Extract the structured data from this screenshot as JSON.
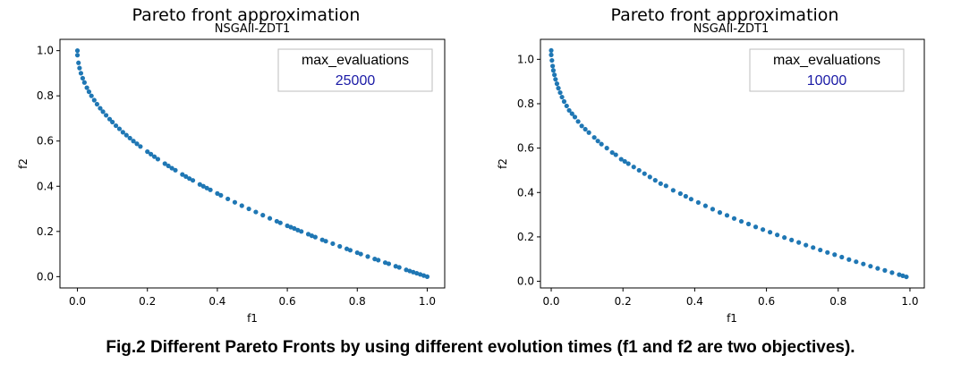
{
  "caption": "Fig.2 Different Pareto Fronts by using different evolution times (f1 and f2 are two objectives).",
  "colors": {
    "points": "#1f77b4",
    "box_value": "#1a1aa6"
  },
  "chart_data": [
    {
      "type": "scatter",
      "title": "Pareto front approximation",
      "subtitle": "NSGAII-ZDT1",
      "xlabel": "f1",
      "ylabel": "f2",
      "xlim": [
        -0.05,
        1.05
      ],
      "ylim": [
        -0.05,
        1.05
      ],
      "xticks": [
        "0.0",
        "0.2",
        "0.4",
        "0.6",
        "0.8",
        "1.0"
      ],
      "yticks": [
        "0.0",
        "0.2",
        "0.4",
        "0.6",
        "0.8",
        "1.0"
      ],
      "grid": false,
      "legend_box": {
        "title": "max_evaluations",
        "value": "25000",
        "position": "top-right"
      },
      "x": [
        0.0,
        0.0,
        0.003,
        0.006,
        0.01,
        0.015,
        0.02,
        0.027,
        0.033,
        0.04,
        0.048,
        0.056,
        0.065,
        0.073,
        0.082,
        0.092,
        0.1,
        0.11,
        0.12,
        0.13,
        0.14,
        0.15,
        0.16,
        0.17,
        0.18,
        0.2,
        0.21,
        0.22,
        0.23,
        0.25,
        0.26,
        0.27,
        0.28,
        0.3,
        0.31,
        0.32,
        0.33,
        0.35,
        0.36,
        0.37,
        0.38,
        0.4,
        0.41,
        0.43,
        0.45,
        0.47,
        0.49,
        0.51,
        0.53,
        0.55,
        0.57,
        0.58,
        0.6,
        0.61,
        0.62,
        0.63,
        0.64,
        0.66,
        0.67,
        0.68,
        0.7,
        0.71,
        0.73,
        0.75,
        0.77,
        0.78,
        0.8,
        0.81,
        0.83,
        0.85,
        0.86,
        0.88,
        0.89,
        0.91,
        0.92,
        0.94,
        0.95,
        0.96,
        0.97,
        0.98,
        0.99,
        1.0
      ],
      "y": [
        1.0,
        0.98,
        0.946,
        0.923,
        0.9,
        0.878,
        0.859,
        0.836,
        0.818,
        0.8,
        0.781,
        0.763,
        0.745,
        0.73,
        0.714,
        0.697,
        0.684,
        0.668,
        0.654,
        0.639,
        0.626,
        0.613,
        0.6,
        0.588,
        0.576,
        0.553,
        0.542,
        0.531,
        0.52,
        0.5,
        0.49,
        0.48,
        0.471,
        0.452,
        0.443,
        0.434,
        0.426,
        0.408,
        0.4,
        0.392,
        0.384,
        0.368,
        0.36,
        0.344,
        0.329,
        0.314,
        0.3,
        0.286,
        0.272,
        0.258,
        0.245,
        0.238,
        0.225,
        0.219,
        0.213,
        0.206,
        0.2,
        0.188,
        0.181,
        0.175,
        0.163,
        0.157,
        0.146,
        0.134,
        0.123,
        0.117,
        0.106,
        0.1,
        0.089,
        0.078,
        0.073,
        0.062,
        0.057,
        0.046,
        0.041,
        0.03,
        0.025,
        0.02,
        0.015,
        0.01,
        0.005,
        0.0
      ]
    },
    {
      "type": "scatter",
      "title": "Pareto front approximation",
      "subtitle": "NSGAII-ZDT1",
      "xlabel": "f1",
      "ylabel": "f2",
      "xlim": [
        -0.03,
        1.04
      ],
      "ylim": [
        -0.03,
        1.09
      ],
      "xticks": [
        "0.0",
        "0.2",
        "0.4",
        "0.6",
        "0.8",
        "1.0"
      ],
      "yticks": [
        "0.0",
        "0.2",
        "0.4",
        "0.6",
        "0.8",
        "1.0"
      ],
      "grid": false,
      "legend_box": {
        "title": "max_evaluations",
        "value": "10000",
        "position": "top-right"
      },
      "x": [
        0.0,
        0.0,
        0.002,
        0.004,
        0.006,
        0.009,
        0.012,
        0.016,
        0.02,
        0.025,
        0.03,
        0.036,
        0.043,
        0.05,
        0.058,
        0.066,
        0.075,
        0.085,
        0.095,
        0.105,
        0.12,
        0.13,
        0.14,
        0.155,
        0.17,
        0.18,
        0.195,
        0.205,
        0.215,
        0.23,
        0.245,
        0.26,
        0.275,
        0.29,
        0.305,
        0.32,
        0.34,
        0.36,
        0.375,
        0.39,
        0.41,
        0.43,
        0.45,
        0.47,
        0.49,
        0.51,
        0.53,
        0.55,
        0.57,
        0.59,
        0.61,
        0.63,
        0.65,
        0.67,
        0.69,
        0.71,
        0.73,
        0.75,
        0.77,
        0.79,
        0.81,
        0.83,
        0.85,
        0.87,
        0.89,
        0.91,
        0.93,
        0.95,
        0.97,
        0.98,
        0.99
      ],
      "y": [
        1.04,
        1.02,
        0.995,
        0.97,
        0.95,
        0.93,
        0.91,
        0.89,
        0.87,
        0.85,
        0.83,
        0.81,
        0.79,
        0.77,
        0.755,
        0.74,
        0.72,
        0.7,
        0.685,
        0.67,
        0.648,
        0.632,
        0.618,
        0.6,
        0.58,
        0.57,
        0.55,
        0.54,
        0.53,
        0.515,
        0.5,
        0.485,
        0.47,
        0.455,
        0.44,
        0.43,
        0.41,
        0.395,
        0.383,
        0.37,
        0.355,
        0.34,
        0.325,
        0.31,
        0.297,
        0.283,
        0.27,
        0.258,
        0.245,
        0.233,
        0.221,
        0.209,
        0.197,
        0.186,
        0.175,
        0.163,
        0.152,
        0.141,
        0.13,
        0.12,
        0.109,
        0.098,
        0.088,
        0.078,
        0.068,
        0.058,
        0.049,
        0.039,
        0.03,
        0.025,
        0.02
      ]
    }
  ]
}
